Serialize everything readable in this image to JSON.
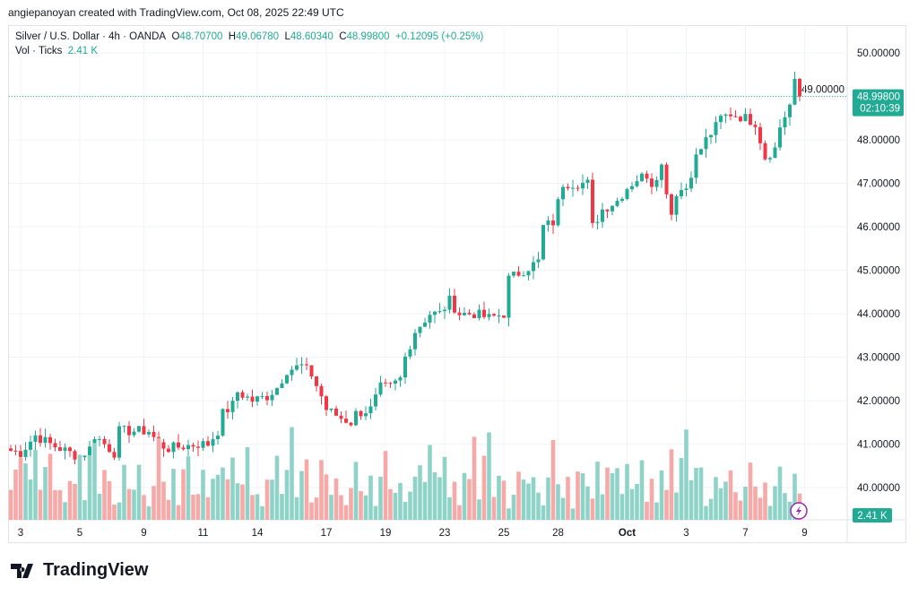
{
  "credit": "angiepanoyan created with TradingView.com, Oct 08, 2025 22:49 UTC",
  "legend": {
    "symbol": "Silver / U.S. Dollar · 4h · OANDA",
    "o_label": "O",
    "o": "48.70700",
    "h_label": "H",
    "h": "49.06780",
    "l_label": "L",
    "l": "48.60340",
    "c_label": "C",
    "c": "48.99800",
    "change": "+0.12095 (+0.25%)",
    "vol_label": "Vol · Ticks",
    "vol": "2.41 K"
  },
  "price_tag": {
    "price": "48.99800",
    "countdown": "02:10:39"
  },
  "vol_tag": "2.41 K",
  "logo_text": "TradingView",
  "colors": {
    "up": "#22ab94",
    "down": "#f23645",
    "vol_up": "#8fd3c8",
    "vol_down": "#f7a9a7",
    "accent": "#22ab94"
  },
  "chart_data": {
    "type": "candlestick",
    "title": "Silver / U.S. Dollar · 4h · OANDA",
    "ylim": [
      39.7,
      50.6
    ],
    "y_ticks": [
      "50.00000",
      "49.00000",
      "48.00000",
      "47.00000",
      "46.00000",
      "45.00000",
      "44.00000",
      "43.00000",
      "42.00000",
      "41.00000",
      "40.00000"
    ],
    "x_ticks": [
      "3",
      "5",
      "9",
      "11",
      "14",
      "17",
      "19",
      "23",
      "25",
      "28",
      "Oct",
      "3",
      "7",
      "9"
    ],
    "x_tick_index": [
      2,
      14,
      27,
      39,
      50,
      64,
      76,
      88,
      100,
      111,
      125,
      137,
      149,
      161
    ],
    "candle_count": 161,
    "close_waypoints": [
      [
        0,
        40.85
      ],
      [
        2,
        40.8
      ],
      [
        5,
        41.2
      ],
      [
        8,
        41.0
      ],
      [
        12,
        40.8
      ],
      [
        14,
        40.7
      ],
      [
        16,
        40.9
      ],
      [
        17,
        41.2
      ],
      [
        19,
        41.0
      ],
      [
        21,
        40.8
      ],
      [
        22,
        41.3
      ],
      [
        25,
        41.3
      ],
      [
        28,
        41.3
      ],
      [
        30,
        41.0
      ],
      [
        32,
        40.9
      ],
      [
        35,
        40.95
      ],
      [
        38,
        41.0
      ],
      [
        40,
        41.0
      ],
      [
        42,
        41.3
      ],
      [
        43,
        41.7
      ],
      [
        45,
        41.9
      ],
      [
        46,
        42.2
      ],
      [
        49,
        42.0
      ],
      [
        52,
        42.1
      ],
      [
        54,
        42.3
      ],
      [
        56,
        42.7
      ],
      [
        59,
        42.8
      ],
      [
        61,
        42.6
      ],
      [
        63,
        42.1
      ],
      [
        64,
        41.8
      ],
      [
        67,
        41.6
      ],
      [
        69,
        41.5
      ],
      [
        70,
        41.7
      ],
      [
        73,
        41.8
      ],
      [
        75,
        42.3
      ],
      [
        77,
        42.3
      ],
      [
        79,
        42.5
      ],
      [
        80,
        43.0
      ],
      [
        82,
        43.6
      ],
      [
        85,
        44.0
      ],
      [
        87,
        44.0
      ],
      [
        89,
        44.3
      ],
      [
        91,
        44.0
      ],
      [
        94,
        44.0
      ],
      [
        97,
        43.9
      ],
      [
        100,
        44.0
      ],
      [
        101,
        44.8
      ],
      [
        104,
        45.0
      ],
      [
        107,
        45.2
      ],
      [
        108,
        46.0
      ],
      [
        110,
        46.1
      ],
      [
        112,
        47.0
      ],
      [
        114,
        47.0
      ],
      [
        117,
        47.0
      ],
      [
        118,
        46.0
      ],
      [
        120,
        46.4
      ],
      [
        123,
        46.6
      ],
      [
        125,
        46.9
      ],
      [
        127,
        47.1
      ],
      [
        129,
        47.2
      ],
      [
        130,
        47.0
      ],
      [
        132,
        47.4
      ],
      [
        134,
        46.3
      ],
      [
        135,
        46.8
      ],
      [
        137,
        46.9
      ],
      [
        139,
        47.6
      ],
      [
        141,
        48.0
      ],
      [
        143,
        48.3
      ],
      [
        144,
        48.5
      ],
      [
        146,
        48.6
      ],
      [
        149,
        48.5
      ],
      [
        151,
        48.4
      ],
      [
        153,
        47.6
      ],
      [
        155,
        47.8
      ],
      [
        156,
        48.3
      ],
      [
        158,
        48.8
      ],
      [
        159,
        49.3
      ],
      [
        160,
        49.0
      ]
    ],
    "volumes": [
      3,
      5,
      6,
      7,
      4,
      8,
      5,
      6,
      7,
      3,
      4,
      2,
      6,
      5,
      8,
      3,
      7,
      9,
      4,
      5,
      6,
      2,
      3,
      7,
      5,
      4,
      6,
      3,
      2,
      5,
      8,
      4,
      3,
      6,
      2,
      5,
      7,
      4,
      3,
      6
    ]
  }
}
